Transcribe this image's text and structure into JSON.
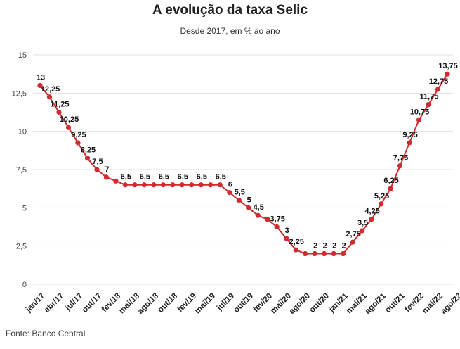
{
  "chart_data": {
    "type": "line",
    "title": "A evolução da taxa Selic",
    "subtitle": "Desde 2017, em % ao ano",
    "source": "Fonte: Banco Central",
    "xlabel": "",
    "ylabel": "",
    "ylim": [
      0,
      15
    ],
    "yticks": [
      0,
      2.5,
      5,
      7.5,
      10,
      12.5,
      15
    ],
    "ytick_labels": [
      "0",
      "2,5",
      "5",
      "7,5",
      "10",
      "12,5",
      "15"
    ],
    "xtick_labels": [
      "jan/17",
      "abr/17",
      "jul/17",
      "out/17",
      "fev/18",
      "mai/18",
      "ago/18",
      "out/18",
      "fev/19",
      "mai/19",
      "jul/19",
      "out/19",
      "fev/20",
      "mai/20",
      "ago/20",
      "out/20",
      "jan/21",
      "mai/21",
      "ago/21",
      "out/21",
      "fev/22",
      "mai/22",
      "ago/22"
    ],
    "xtick_positions": [
      0,
      2,
      4,
      6,
      8,
      10,
      12,
      14,
      16,
      18,
      20,
      22,
      24,
      26,
      28,
      30,
      32,
      34,
      36,
      38,
      40,
      42,
      44
    ],
    "grid": true,
    "color": "#d12a2f",
    "values": [
      13,
      12.25,
      11.25,
      10.25,
      9.25,
      8.25,
      7.5,
      7,
      6.75,
      6.5,
      6.5,
      6.5,
      6.5,
      6.5,
      6.5,
      6.5,
      6.5,
      6.5,
      6.5,
      6.5,
      6,
      5.5,
      5,
      4.5,
      4.25,
      3.75,
      3,
      2.25,
      2,
      2,
      2,
      2,
      2,
      2.75,
      3.5,
      4.25,
      5.25,
      6.25,
      7.75,
      9.25,
      10.75,
      11.75,
      12.75,
      13.75
    ],
    "labels": [
      "13",
      "12,25",
      "11,25",
      "10,25",
      "9,25",
      "8,25",
      "7,5",
      "7",
      "",
      "6,5",
      "",
      "6,5",
      "",
      "6,5",
      "",
      "6,5",
      "",
      "6,5",
      "",
      "6,5",
      "6",
      "5,5",
      "5",
      "4,5",
      "",
      "3,75",
      "3",
      "2,25",
      "",
      "2",
      "2",
      "2",
      "2",
      "2,75",
      "3,5",
      "4,25",
      "5,25",
      "6,25",
      "7,75",
      "9,25",
      "10,75",
      "11,75",
      "12,75",
      "13,75"
    ]
  }
}
